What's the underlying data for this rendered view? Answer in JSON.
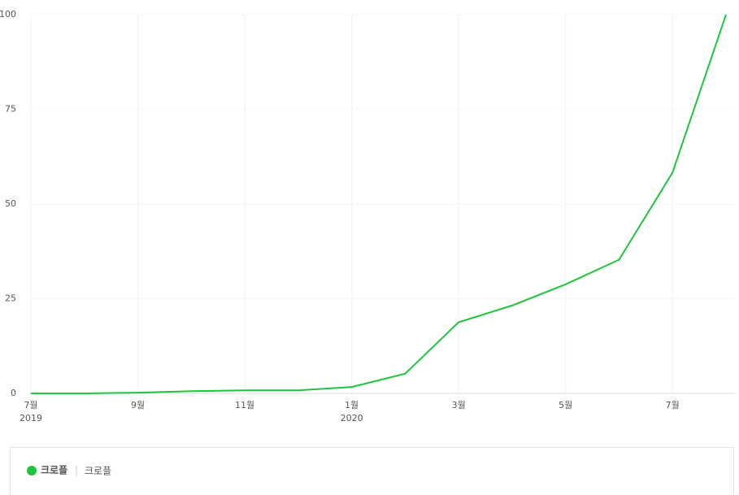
{
  "chart_data": {
    "type": "line",
    "categories": [
      "7월",
      null,
      "9월",
      null,
      "11월",
      null,
      "1월",
      null,
      "3월",
      null,
      "5월",
      null,
      "7월",
      null
    ],
    "year_labels": [
      "2019",
      null,
      null,
      null,
      null,
      null,
      "2020",
      null,
      null,
      null,
      null,
      null,
      null,
      null
    ],
    "series": [
      {
        "name": "크로플",
        "color": "#1ec43c",
        "values": [
          0,
          0,
          0.2,
          0.6,
          0.8,
          0.8,
          1.7,
          5.2,
          18.8,
          23.2,
          28.8,
          35.3,
          58.3,
          100
        ]
      }
    ],
    "legend_keywords": [
      "크로플"
    ],
    "ylim": [
      0,
      100
    ],
    "yticks": [
      0,
      25,
      50,
      75,
      100
    ],
    "grid": true
  }
}
